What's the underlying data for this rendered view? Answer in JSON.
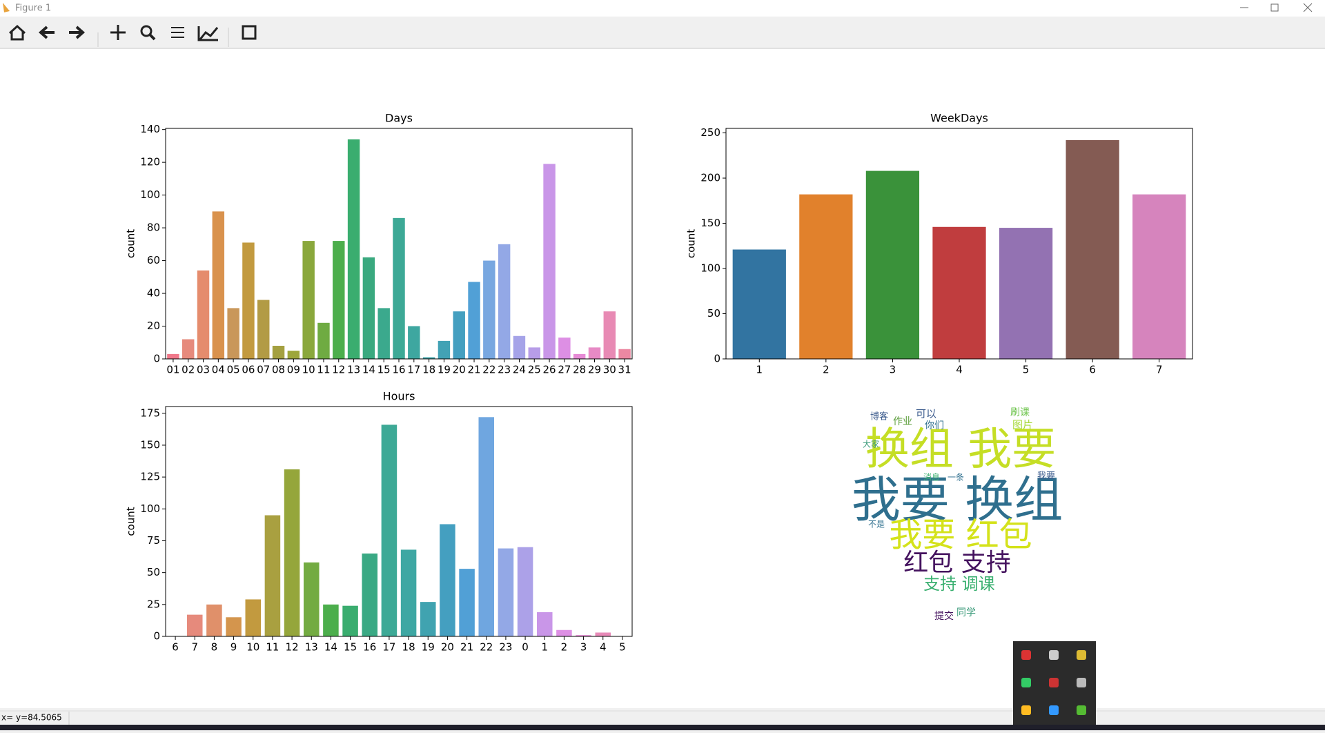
{
  "window": {
    "title": "Figure 1",
    "status": "x= y=84.5065"
  },
  "chart_data": [
    {
      "type": "bar",
      "title": "Days",
      "y_label": "count",
      "categories": [
        "01",
        "02",
        "03",
        "04",
        "05",
        "06",
        "07",
        "08",
        "09",
        "10",
        "11",
        "12",
        "13",
        "14",
        "15",
        "16",
        "17",
        "18",
        "19",
        "20",
        "21",
        "22",
        "23",
        "24",
        "25",
        "26",
        "27",
        "28",
        "29",
        "30",
        "31"
      ],
      "values": [
        3,
        12,
        54,
        90,
        31,
        71,
        36,
        8,
        5,
        72,
        22,
        72,
        134,
        62,
        31,
        86,
        20,
        1,
        11,
        29,
        47,
        60,
        70,
        14,
        7,
        119,
        13,
        3,
        7,
        29,
        6
      ],
      "colors": [
        "#f0788a",
        "#e68a7c",
        "#e58c6d",
        "#d9924d",
        "#c9975a",
        "#c29a3f",
        "#b29b45",
        "#a4a040",
        "#9da63b",
        "#8aa83c",
        "#6fab42",
        "#4cae4c",
        "#3aad6f",
        "#3aa97f",
        "#3ba98d",
        "#3da996",
        "#3ea7a0",
        "#3fa5aa",
        "#42a2b5",
        "#449fc0",
        "#51a0d6",
        "#78a7e0",
        "#93a8e6",
        "#a5a3e8",
        "#b79de8",
        "#c996e8",
        "#dd8fe4",
        "#e68ad5",
        "#e78ac5",
        "#e88ab4",
        "#ec88a2"
      ],
      "ylim": [
        0,
        140.7
      ],
      "yticks": [
        0,
        20,
        40,
        60,
        80,
        100,
        120,
        140
      ]
    },
    {
      "type": "bar",
      "title": "WeekDays",
      "y_label": "count",
      "categories": [
        "1",
        "2",
        "3",
        "4",
        "5",
        "6",
        "7"
      ],
      "values": [
        121,
        182,
        208,
        146,
        145,
        242,
        182
      ],
      "colors": [
        "#3274a1",
        "#e1812c",
        "#3a923a",
        "#c03d3e",
        "#9372b2",
        "#845b53",
        "#d684bd"
      ],
      "ylim": [
        0,
        255
      ],
      "yticks": [
        0,
        50,
        100,
        150,
        200,
        250
      ]
    },
    {
      "type": "bar",
      "title": "Hours",
      "y_label": "count",
      "categories": [
        "6",
        "7",
        "8",
        "9",
        "10",
        "11",
        "12",
        "13",
        "14",
        "15",
        "16",
        "17",
        "18",
        "19",
        "20",
        "21",
        "22",
        "23",
        "0",
        "1",
        "2",
        "3",
        "4",
        "5"
      ],
      "values": [
        0,
        17,
        25,
        15,
        29,
        95,
        131,
        58,
        25,
        24,
        65,
        166,
        68,
        27,
        88,
        53,
        172,
        69,
        70,
        19,
        5,
        1,
        3,
        0
      ],
      "colors": [
        "#f0788a",
        "#e68a7c",
        "#e0906a",
        "#d4954d",
        "#c29a3f",
        "#a9a040",
        "#95a63b",
        "#73ab42",
        "#4cae4c",
        "#3aad6f",
        "#3aa984",
        "#3da996",
        "#3ea7a3",
        "#40a3b0",
        "#449fc0",
        "#51a0d6",
        "#6fa6e0",
        "#93a8e6",
        "#aca1e8",
        "#c996e8",
        "#dd8fe4",
        "#e68ad5",
        "#e88ab8",
        "#ec88a2"
      ],
      "ylim": [
        0,
        180.3
      ],
      "yticks": [
        0,
        25,
        50,
        75,
        100,
        125,
        150,
        175
      ]
    }
  ],
  "wordcloud": {
    "words": [
      "换组 我要",
      "我要 换组",
      "我要 红包",
      "红包 支持",
      "支持 调课",
      "可以",
      "图片",
      "作业",
      "同学",
      "你们",
      "提交",
      "博客",
      "大家",
      "一条",
      "消息",
      "刷课",
      "我要",
      "不是"
    ]
  }
}
